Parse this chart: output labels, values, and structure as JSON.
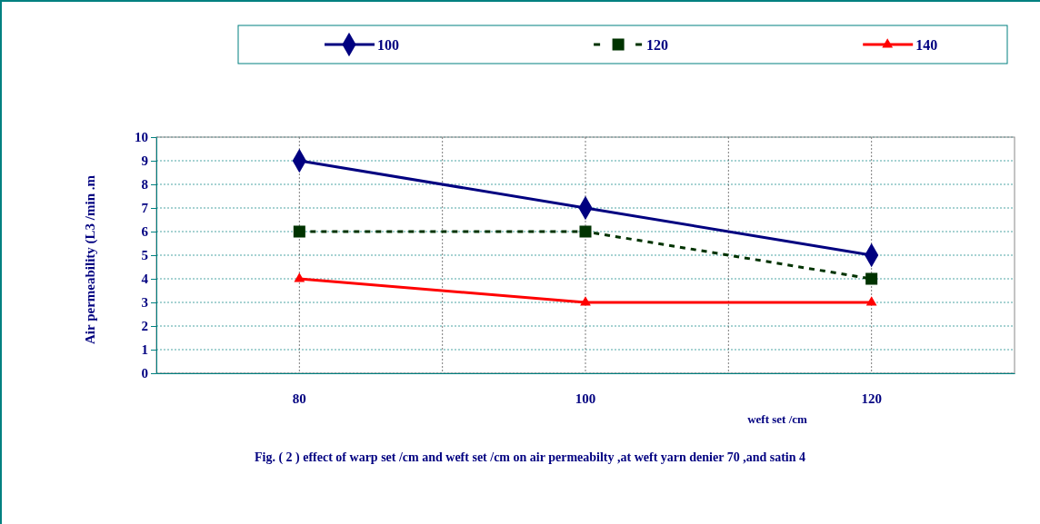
{
  "chart_data": {
    "type": "line",
    "xlabel": "weft set /cm",
    "ylabel": "Air permeability  (L3 /min .m",
    "categories": [
      "80",
      "100",
      "120"
    ],
    "series": [
      {
        "name": "100",
        "color": "#000080",
        "values": [
          9,
          7,
          5
        ],
        "marker": "diamond",
        "line_style": "solid"
      },
      {
        "name": "120",
        "color": "#003300",
        "values": [
          6,
          6,
          4
        ],
        "marker": "square",
        "line_style": "dashed"
      },
      {
        "name": "140",
        "color": "#ff0000",
        "values": [
          4,
          3,
          3
        ],
        "marker": "triangle",
        "line_style": "solid"
      }
    ],
    "ylim": [
      0,
      10
    ],
    "yticks": [
      0,
      1,
      2,
      3,
      4,
      5,
      6,
      7,
      8,
      9,
      10
    ],
    "grid": true,
    "legend": "top",
    "annotations": [
      "Fig. ( 2 ) effect of warp set /cm and weft set /cm on air permeabilty ,at weft yarn denier 70 ,and satin 4"
    ]
  }
}
